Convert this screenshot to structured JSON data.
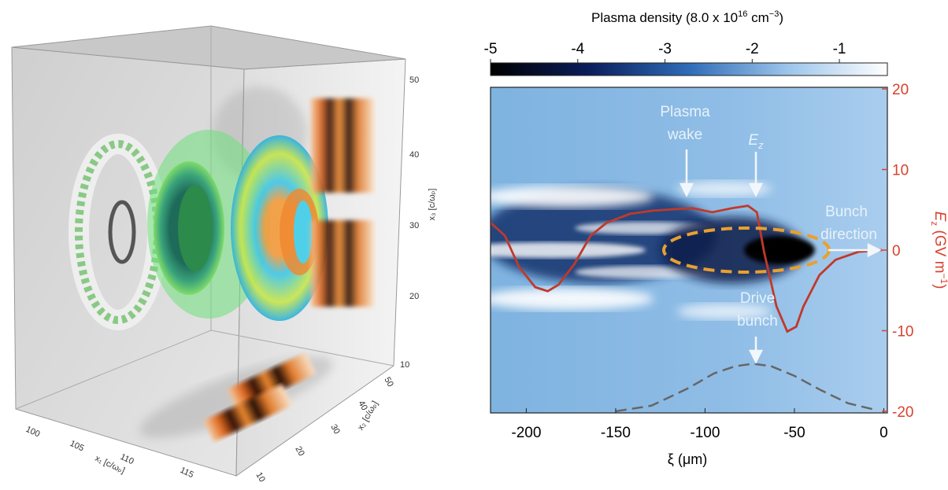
{
  "chart_data": {
    "type": "line",
    "colorbar": {
      "title": [
        "Plasma density (8.0 x 10",
        "16",
        " cm",
        "−3",
        ")"
      ],
      "lim": [
        -5,
        -0.45
      ],
      "ticks": [
        -5,
        -4,
        -3,
        -2,
        -1
      ],
      "colormap": [
        "#000000",
        "#0b1e5c",
        "#2f6cb8",
        "#9cc5ea",
        "#ffffff"
      ]
    },
    "xlabel": "ξ (μm)",
    "xlim": [
      -220,
      2
    ],
    "xticks": [
      -200,
      -150,
      -100,
      -50,
      0
    ],
    "y2label": [
      "E",
      "z",
      " (GV m",
      "−1",
      ")"
    ],
    "y2lim": [
      -20.2,
      20.2
    ],
    "y2ticks": [
      -20,
      -10,
      0,
      10,
      20
    ],
    "y2_color": "#d9412e",
    "grid": false,
    "series": [
      {
        "color": "#c0392b",
        "axis": "y2",
        "dash": false,
        "x": [
          -220,
          -212,
          -204,
          -195,
          -188,
          -182,
          -173,
          -164,
          -155,
          -142,
          -129,
          -115,
          -107,
          -96,
          -85,
          -76,
          -71,
          -67,
          -60,
          -54,
          -49,
          -45,
          -36,
          -27,
          -14,
          -1
        ],
        "values": [
          3.4,
          1.8,
          -2.1,
          -4.6,
          -5.1,
          -4.3,
          -1.7,
          1.8,
          3.4,
          4.5,
          4.9,
          5.1,
          5.2,
          4.7,
          5.2,
          5.5,
          4.7,
          -0.2,
          -7.0,
          -10.1,
          -9.5,
          -7.0,
          -3.1,
          -1.2,
          -0.2,
          0
        ]
      },
      {
        "color": "#666666",
        "axis": "y2",
        "dash": true,
        "x": [
          -150,
          -130,
          -110,
          -95,
          -83,
          -73,
          -63,
          -50,
          -35,
          -20,
          -5
        ],
        "values": [
          -20,
          -19.3,
          -17.2,
          -15.3,
          -14.4,
          -14.1,
          -14.4,
          -15.6,
          -17.4,
          -19,
          -19.8
        ]
      }
    ],
    "annotations": [
      [
        "Plasma",
        "wake"
      ],
      [
        "E",
        "z"
      ],
      [
        "Bunch",
        "direction"
      ],
      [
        "Drive",
        "bunch"
      ]
    ]
  },
  "render_panel": {
    "x3_label": "x₃ [c/ωₚ]",
    "x3_ticks": [
      "50",
      "40",
      "30",
      "20",
      "10"
    ],
    "x1_label": "x₁ [c/ωₚ]",
    "x1_ticks": [
      "100",
      "105",
      "110",
      "115"
    ],
    "x2_label": "x₂ [c/ωₚ]",
    "x2_ticks": [
      "50",
      "40",
      "30",
      "20",
      "10"
    ]
  }
}
